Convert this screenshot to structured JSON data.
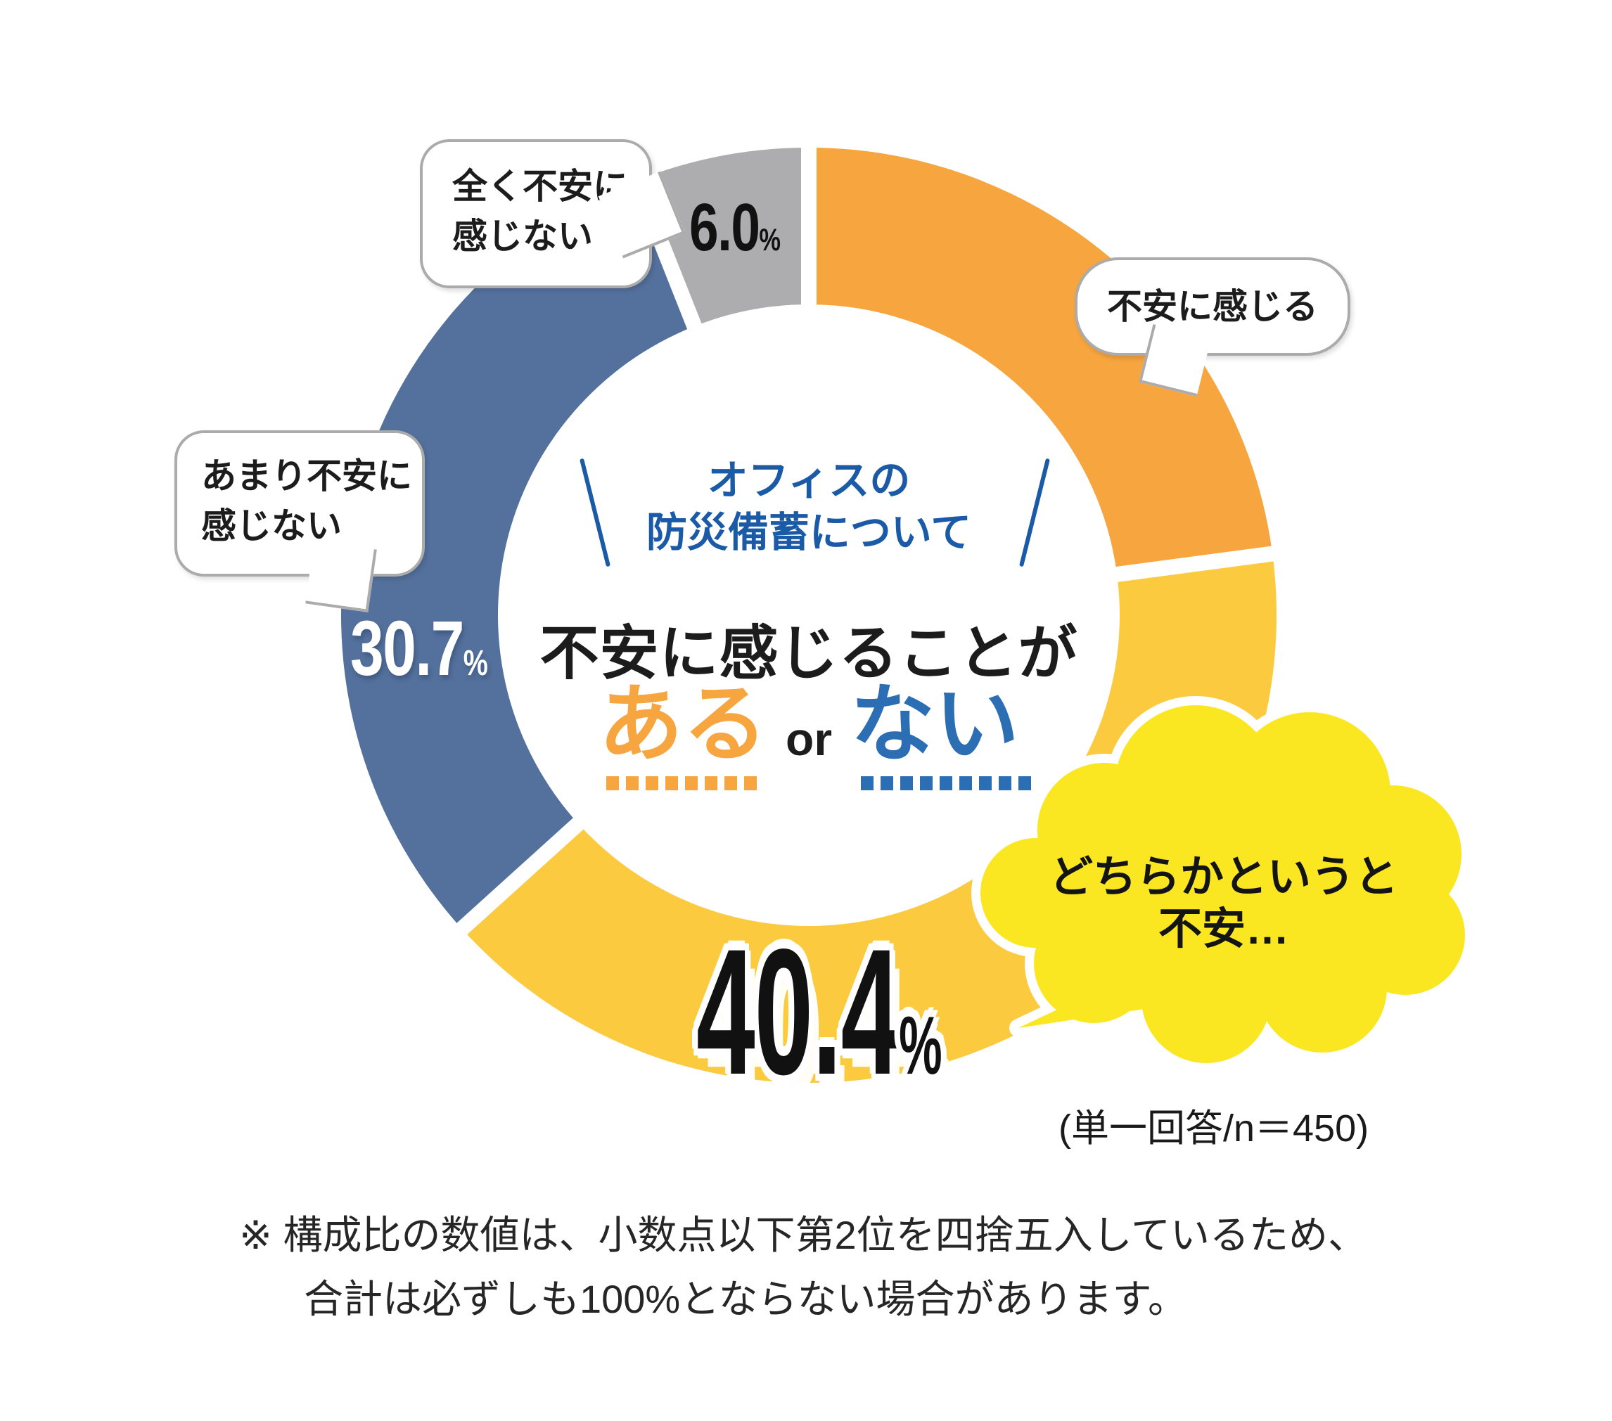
{
  "chart_data": {
    "type": "pie",
    "variant": "donut",
    "title": "オフィスの防災備蓄について 不安に感じることが ある or ない",
    "categories": [
      "不安に感じる",
      "どちらかというと不安…",
      "あまり不安に感じない",
      "全く不安に感じない"
    ],
    "values": [
      22.9,
      40.4,
      30.7,
      6.0
    ],
    "value_labels_shown": [
      "",
      "40.4%",
      "30.7%",
      "6.0%"
    ],
    "unit": "%",
    "colors": [
      "#F7A53E",
      "#FBCA3F",
      "#54719D",
      "#ADADAF"
    ],
    "start_angle_deg": 0,
    "direction": "clockwise",
    "legend_position": "callout-bubbles",
    "note": "(単一回答/n＝450)",
    "footnote": "※ 構成比の数値は、小数点以下第2位を四捨五入しているため、合計は必ずしも100%とならない場合があります。"
  },
  "colors": {
    "orange": "#F7A53E",
    "yellow": "#FBCA3F",
    "blue": "#54719D",
    "gray": "#ADADAF",
    "cloud": "#FAE722",
    "title_blue": "#1A5AA6",
    "option_no_blue": "#2B6EB4",
    "bubble_border": "#ABABAB"
  },
  "center": {
    "topic_line1": "オフィスの",
    "topic_line2": "防災備蓄について",
    "question": "不安に感じることが",
    "option_yes": "ある",
    "or_word": "or",
    "option_no": "ない"
  },
  "bubbles": {
    "feel_anxious": {
      "label": "不安に感じる"
    },
    "somewhat_anxious": {
      "line1": "どちらかというと",
      "line2": "不安…"
    },
    "not_very_anxious": {
      "line1": "あまり不安に",
      "line2": "感じない"
    },
    "not_at_all_anxious": {
      "line1": "全く不安に",
      "line2": "感じない"
    }
  },
  "percent_labels": {
    "somewhat": {
      "value": "40.4",
      "unit": "%"
    },
    "not_very": {
      "value": "30.7",
      "unit": "%"
    },
    "not_at_all": {
      "value": "6.0",
      "unit": "%"
    }
  },
  "survey_note": "(単一回答/n＝450)",
  "footnote": {
    "line1": "※ 構成比の数値は、小数点以下第2位を四捨五入しているため、",
    "line2": "合計は必ずしも100%とならない場合があります。"
  }
}
